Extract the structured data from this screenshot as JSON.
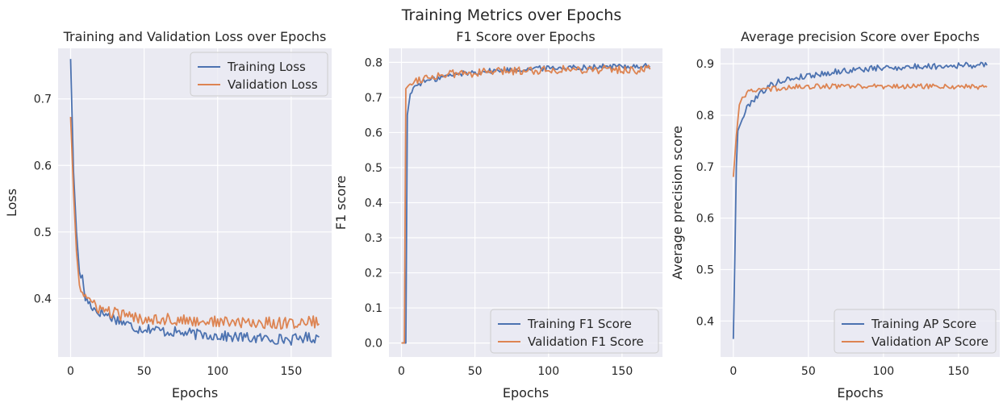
{
  "figure": {
    "suptitle": "Training Metrics over Epochs"
  },
  "colors": {
    "training": "#4c72b0",
    "validation": "#dd8452",
    "axes_bg": "#eaeaf2",
    "grid": "#ffffff",
    "legend_edge": "#cccccc"
  },
  "chart_data": [
    {
      "type": "line",
      "title": "Training and Validation Loss over Epochs",
      "xlabel": "Epochs",
      "ylabel": "Loss",
      "xlim": [
        -8.5,
        177.5
      ],
      "ylim": [
        0.312,
        0.776
      ],
      "xticks": [
        0,
        50,
        100,
        150
      ],
      "yticks": [
        0.4,
        0.5,
        0.6,
        0.7
      ],
      "grid": true,
      "legend": "top-right",
      "series": [
        {
          "name": "Training Loss",
          "color": "#4c72b0",
          "points": [
            [
              0,
              0.76
            ],
            [
              2,
              0.59
            ],
            [
              4,
              0.5
            ],
            [
              6,
              0.44
            ],
            [
              8,
              0.43
            ],
            [
              10,
              0.4
            ],
            [
              12,
              0.395
            ],
            [
              14,
              0.39
            ],
            [
              16,
              0.385
            ],
            [
              18,
              0.38
            ],
            [
              20,
              0.38
            ],
            [
              25,
              0.375
            ],
            [
              30,
              0.37
            ],
            [
              35,
              0.365
            ],
            [
              40,
              0.36
            ],
            [
              45,
              0.355
            ],
            [
              50,
              0.355
            ],
            [
              55,
              0.355
            ],
            [
              60,
              0.352
            ],
            [
              65,
              0.35
            ],
            [
              70,
              0.35
            ],
            [
              75,
              0.348
            ],
            [
              80,
              0.348
            ],
            [
              85,
              0.346
            ],
            [
              90,
              0.346
            ],
            [
              95,
              0.345
            ],
            [
              100,
              0.344
            ],
            [
              105,
              0.343
            ],
            [
              110,
              0.342
            ],
            [
              115,
              0.342
            ],
            [
              120,
              0.341
            ],
            [
              125,
              0.34
            ],
            [
              130,
              0.34
            ],
            [
              135,
              0.34
            ],
            [
              140,
              0.339
            ],
            [
              145,
              0.339
            ],
            [
              150,
              0.338
            ],
            [
              155,
              0.34
            ],
            [
              160,
              0.342
            ],
            [
              165,
              0.34
            ],
            [
              169,
              0.342
            ]
          ],
          "noise": 0.008
        },
        {
          "name": "Validation Loss",
          "color": "#dd8452",
          "points": [
            [
              0,
              0.673
            ],
            [
              2,
              0.56
            ],
            [
              4,
              0.47
            ],
            [
              6,
              0.42
            ],
            [
              8,
              0.41
            ],
            [
              10,
              0.405
            ],
            [
              12,
              0.4
            ],
            [
              15,
              0.39
            ],
            [
              20,
              0.385
            ],
            [
              25,
              0.38
            ],
            [
              30,
              0.378
            ],
            [
              35,
              0.375
            ],
            [
              40,
              0.372
            ],
            [
              50,
              0.37
            ],
            [
              60,
              0.37
            ],
            [
              70,
              0.368
            ],
            [
              80,
              0.366
            ],
            [
              90,
              0.366
            ],
            [
              100,
              0.365
            ],
            [
              110,
              0.364
            ],
            [
              120,
              0.363
            ],
            [
              130,
              0.363
            ],
            [
              140,
              0.363
            ],
            [
              150,
              0.363
            ],
            [
              160,
              0.364
            ],
            [
              165,
              0.365
            ],
            [
              169,
              0.362
            ]
          ],
          "noise": 0.009
        }
      ]
    },
    {
      "type": "line",
      "title": "F1 Score over Epochs",
      "xlabel": "Epochs",
      "ylabel": "F1 score",
      "xlim": [
        -8.5,
        177.5
      ],
      "ylim": [
        -0.04,
        0.84
      ],
      "xticks": [
        0,
        50,
        100,
        150
      ],
      "yticks": [
        0.0,
        0.1,
        0.2,
        0.3,
        0.4,
        0.5,
        0.6,
        0.7,
        0.8
      ],
      "grid": true,
      "legend": "bottom-right",
      "series": [
        {
          "name": "Training F1 Score",
          "color": "#4c72b0",
          "points": [
            [
              0,
              0.0
            ],
            [
              2,
              0.0
            ],
            [
              3,
              0.0
            ],
            [
              4,
              0.65
            ],
            [
              6,
              0.71
            ],
            [
              8,
              0.725
            ],
            [
              10,
              0.735
            ],
            [
              15,
              0.745
            ],
            [
              20,
              0.75
            ],
            [
              25,
              0.755
            ],
            [
              30,
              0.76
            ],
            [
              40,
              0.768
            ],
            [
              50,
              0.772
            ],
            [
              60,
              0.775
            ],
            [
              70,
              0.778
            ],
            [
              80,
              0.78
            ],
            [
              90,
              0.782
            ],
            [
              100,
              0.784
            ],
            [
              110,
              0.785
            ],
            [
              120,
              0.786
            ],
            [
              130,
              0.787
            ],
            [
              140,
              0.788
            ],
            [
              150,
              0.789
            ],
            [
              160,
              0.789
            ],
            [
              169,
              0.789
            ]
          ],
          "noise": 0.008
        },
        {
          "name": "Validation F1 Score",
          "color": "#dd8452",
          "points": [
            [
              0,
              0.0
            ],
            [
              2,
              0.0
            ],
            [
              3,
              0.725
            ],
            [
              5,
              0.735
            ],
            [
              8,
              0.745
            ],
            [
              10,
              0.75
            ],
            [
              15,
              0.755
            ],
            [
              20,
              0.76
            ],
            [
              30,
              0.765
            ],
            [
              40,
              0.768
            ],
            [
              50,
              0.77
            ],
            [
              60,
              0.772
            ],
            [
              70,
              0.775
            ],
            [
              80,
              0.777
            ],
            [
              90,
              0.778
            ],
            [
              100,
              0.779
            ],
            [
              110,
              0.78
            ],
            [
              120,
              0.78
            ],
            [
              130,
              0.78
            ],
            [
              140,
              0.78
            ],
            [
              150,
              0.779
            ],
            [
              160,
              0.778
            ],
            [
              169,
              0.78
            ]
          ],
          "noise": 0.012
        }
      ]
    },
    {
      "type": "line",
      "title": "Average precision Score over Epochs",
      "xlabel": "Epochs",
      "ylabel": "Average precision score",
      "xlim": [
        -8.5,
        177.5
      ],
      "ylim": [
        0.33,
        0.93
      ],
      "xticks": [
        0,
        50,
        100,
        150
      ],
      "yticks": [
        0.4,
        0.5,
        0.6,
        0.7,
        0.8,
        0.9
      ],
      "grid": true,
      "legend": "bottom-right",
      "series": [
        {
          "name": "Training AP Score",
          "color": "#4c72b0",
          "points": [
            [
              0,
              0.365
            ],
            [
              1,
              0.52
            ],
            [
              2,
              0.7
            ],
            [
              3,
              0.77
            ],
            [
              5,
              0.785
            ],
            [
              7,
              0.8
            ],
            [
              10,
              0.82
            ],
            [
              15,
              0.835
            ],
            [
              20,
              0.848
            ],
            [
              25,
              0.858
            ],
            [
              30,
              0.865
            ],
            [
              40,
              0.872
            ],
            [
              50,
              0.877
            ],
            [
              60,
              0.881
            ],
            [
              70,
              0.885
            ],
            [
              80,
              0.888
            ],
            [
              90,
              0.89
            ],
            [
              100,
              0.892
            ],
            [
              110,
              0.893
            ],
            [
              120,
              0.894
            ],
            [
              130,
              0.895
            ],
            [
              140,
              0.896
            ],
            [
              150,
              0.897
            ],
            [
              160,
              0.897
            ],
            [
              169,
              0.897
            ]
          ],
          "noise": 0.006
        },
        {
          "name": "Validation AP Score",
          "color": "#dd8452",
          "points": [
            [
              0,
              0.68
            ],
            [
              2,
              0.76
            ],
            [
              4,
              0.82
            ],
            [
              6,
              0.835
            ],
            [
              8,
              0.84
            ],
            [
              10,
              0.845
            ],
            [
              15,
              0.848
            ],
            [
              20,
              0.85
            ],
            [
              30,
              0.852
            ],
            [
              40,
              0.855
            ],
            [
              50,
              0.856
            ],
            [
              60,
              0.856
            ],
            [
              70,
              0.856
            ],
            [
              80,
              0.856
            ],
            [
              90,
              0.856
            ],
            [
              100,
              0.856
            ],
            [
              110,
              0.856
            ],
            [
              120,
              0.856
            ],
            [
              130,
              0.856
            ],
            [
              140,
              0.856
            ],
            [
              150,
              0.856
            ],
            [
              160,
              0.855
            ],
            [
              169,
              0.855
            ]
          ],
          "noise": 0.005
        }
      ]
    }
  ]
}
